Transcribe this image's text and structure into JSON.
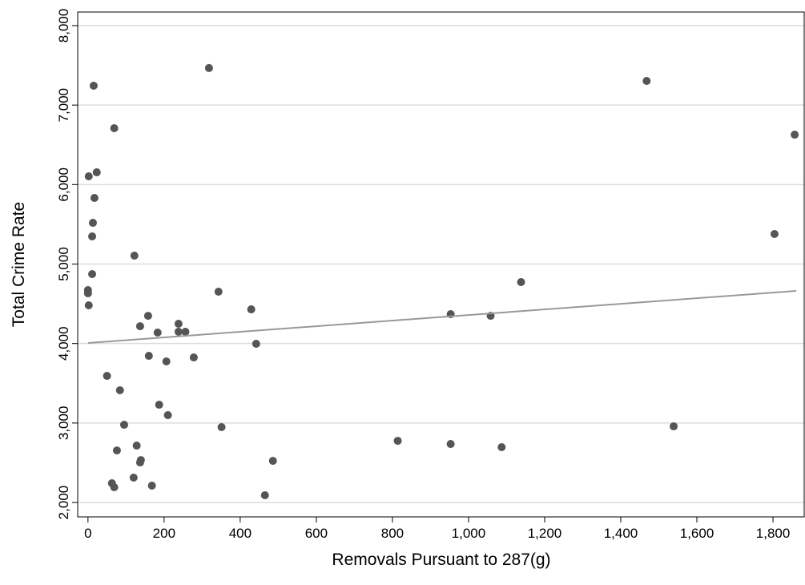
{
  "chart_data": {
    "type": "scatter",
    "x_label": "Removals Pursuant to 287(g)",
    "y_label": "Total Crime Rate",
    "xlim": [
      -27,
      1882
    ],
    "ylim": [
      1819,
      8171
    ],
    "xticks": [
      0,
      200,
      400,
      600,
      800,
      {
        "value": 1000,
        "label": "1,000"
      },
      {
        "value": 1200,
        "label": "1,200"
      },
      {
        "value": 1400,
        "label": "1,400"
      },
      {
        "value": 1600,
        "label": "1,600"
      },
      {
        "value": 1800,
        "label": "1,800"
      }
    ],
    "yticks": [
      {
        "value": 2000,
        "label": "2,000"
      },
      {
        "value": 3000,
        "label": "3,000"
      },
      {
        "value": 4000,
        "label": "4,000"
      },
      {
        "value": 5000,
        "label": "5,000"
      },
      {
        "value": 6000,
        "label": "6,000"
      },
      {
        "value": 7000,
        "label": "7,000"
      },
      {
        "value": 8000,
        "label": "8,000"
      }
    ],
    "grid": true,
    "series": [
      {
        "color": "#555555",
        "x": [
          15,
          318,
          69,
          1468,
          1857,
          2,
          23,
          17,
          13,
          11,
          122,
          1804,
          11,
          0,
          0,
          2,
          343,
          1138,
          429,
          158,
          137,
          183,
          238,
          238,
          256,
          442,
          953,
          1058,
          160,
          278,
          206,
          50,
          84,
          187,
          210,
          95,
          351,
          1539,
          814,
          953,
          1087,
          128,
          76,
          139,
          137,
          486,
          120,
          63,
          69,
          168,
          465
        ],
        "values": [
          7244,
          7466,
          6709,
          7304,
          6628,
          6104,
          6154,
          5832,
          5519,
          5348,
          5106,
          5378,
          4874,
          4672,
          4632,
          4481,
          4652,
          4773,
          4430,
          4349,
          4218,
          4138,
          4249,
          4148,
          4148,
          3997,
          4370,
          4349,
          3845,
          3825,
          3775,
          3593,
          3412,
          3230,
          3099,
          2978,
          2948,
          2958,
          2776,
          2736,
          2696,
          2716,
          2655,
          2534,
          2504,
          2524,
          2313,
          2242,
          2192,
          2212,
          2091
        ]
      }
    ],
    "fit": {
      "color": "#999999",
      "x": [
        0,
        1861
      ],
      "values": [
        4007,
        4662
      ]
    }
  }
}
